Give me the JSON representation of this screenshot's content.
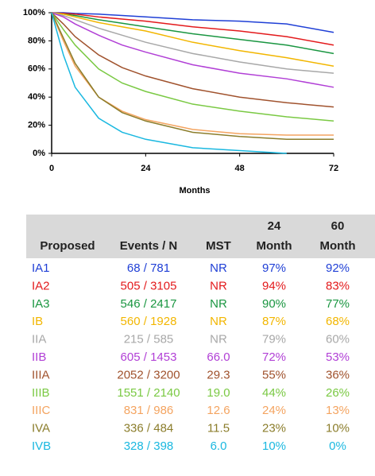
{
  "chart_data": {
    "type": "line",
    "x_label": "Months",
    "x": [
      0,
      3,
      6,
      12,
      18,
      24,
      36,
      48,
      60,
      72
    ],
    "xlim": [
      0,
      72
    ],
    "xticks": [
      0,
      24,
      48,
      72
    ],
    "ylim": [
      0,
      100
    ],
    "yticks": [
      {
        "value": 0,
        "label": "0%"
      },
      {
        "value": 20,
        "label": "20%"
      },
      {
        "value": 40,
        "label": "40%"
      },
      {
        "value": 60,
        "label": "60%"
      },
      {
        "value": 80,
        "label": "80%"
      },
      {
        "value": 100,
        "label": "100%"
      }
    ],
    "series": [
      {
        "name": "IA1",
        "color": "#1f3fd6",
        "values": [
          100,
          100,
          99.5,
          99,
          98,
          97,
          95,
          94,
          92,
          86
        ]
      },
      {
        "name": "IA2",
        "color": "#e31a1c",
        "values": [
          100,
          99.5,
          99,
          97,
          95.5,
          94,
          90,
          87,
          83,
          77
        ]
      },
      {
        "name": "IA3",
        "color": "#1a9641",
        "values": [
          100,
          99,
          98,
          95,
          92.5,
          90,
          85,
          81,
          77,
          71
        ]
      },
      {
        "name": "IB",
        "color": "#f2b600",
        "values": [
          100,
          99,
          97,
          93,
          90,
          87,
          79,
          73,
          68,
          62
        ]
      },
      {
        "name": "IIA",
        "color": "#a8a8a8",
        "values": [
          100,
          98,
          95,
          89,
          84,
          79,
          71,
          65,
          60,
          57
        ]
      },
      {
        "name": "IIB",
        "color": "#b13fd6",
        "values": [
          100,
          97,
          92,
          84,
          77,
          72,
          63,
          57,
          53,
          47
        ]
      },
      {
        "name": "IIIA",
        "color": "#a0522d",
        "values": [
          100,
          92,
          83,
          70,
          61,
          55,
          46,
          40,
          36,
          33
        ]
      },
      {
        "name": "IIIB",
        "color": "#7ac943",
        "values": [
          100,
          88,
          77,
          60,
          50,
          44,
          35,
          30,
          26,
          23
        ]
      },
      {
        "name": "IIIC",
        "color": "#f4a460",
        "values": [
          100,
          80,
          62,
          40,
          30,
          24,
          17,
          14,
          13,
          13
        ]
      },
      {
        "name": "IVA",
        "color": "#8b7d2b",
        "values": [
          100,
          82,
          64,
          40,
          29,
          23,
          15,
          12,
          10,
          10
        ]
      },
      {
        "name": "IVB",
        "color": "#1ab8e0",
        "values": [
          100,
          70,
          47,
          25,
          15,
          10,
          4,
          2,
          0,
          null
        ]
      }
    ]
  },
  "table": {
    "headers": [
      [
        "Proposed"
      ],
      [
        "Events / N"
      ],
      [
        "MST"
      ],
      [
        "24",
        "Month"
      ],
      [
        "60",
        "Month"
      ]
    ],
    "rows": [
      [
        "68 / 781",
        "NR",
        "97%",
        "92%"
      ],
      [
        "505 / 3105",
        "NR",
        "94%",
        "83%"
      ],
      [
        "546 / 2417",
        "NR",
        "90%",
        "77%"
      ],
      [
        "560 / 1928",
        "NR",
        "87%",
        "68%"
      ],
      [
        "215 / 585",
        "NR",
        "79%",
        "60%"
      ],
      [
        "605 / 1453",
        "66.0",
        "72%",
        "53%"
      ],
      [
        "2052 / 3200",
        "29.3",
        "55%",
        "36%"
      ],
      [
        "1551 / 2140",
        "19.0",
        "44%",
        "26%"
      ],
      [
        "831 / 986",
        "12.6",
        "24%",
        "13%"
      ],
      [
        "336 / 484",
        "11.5",
        "23%",
        "10%"
      ],
      [
        "328 / 398",
        "6.0",
        "10%",
        "0%"
      ]
    ]
  }
}
